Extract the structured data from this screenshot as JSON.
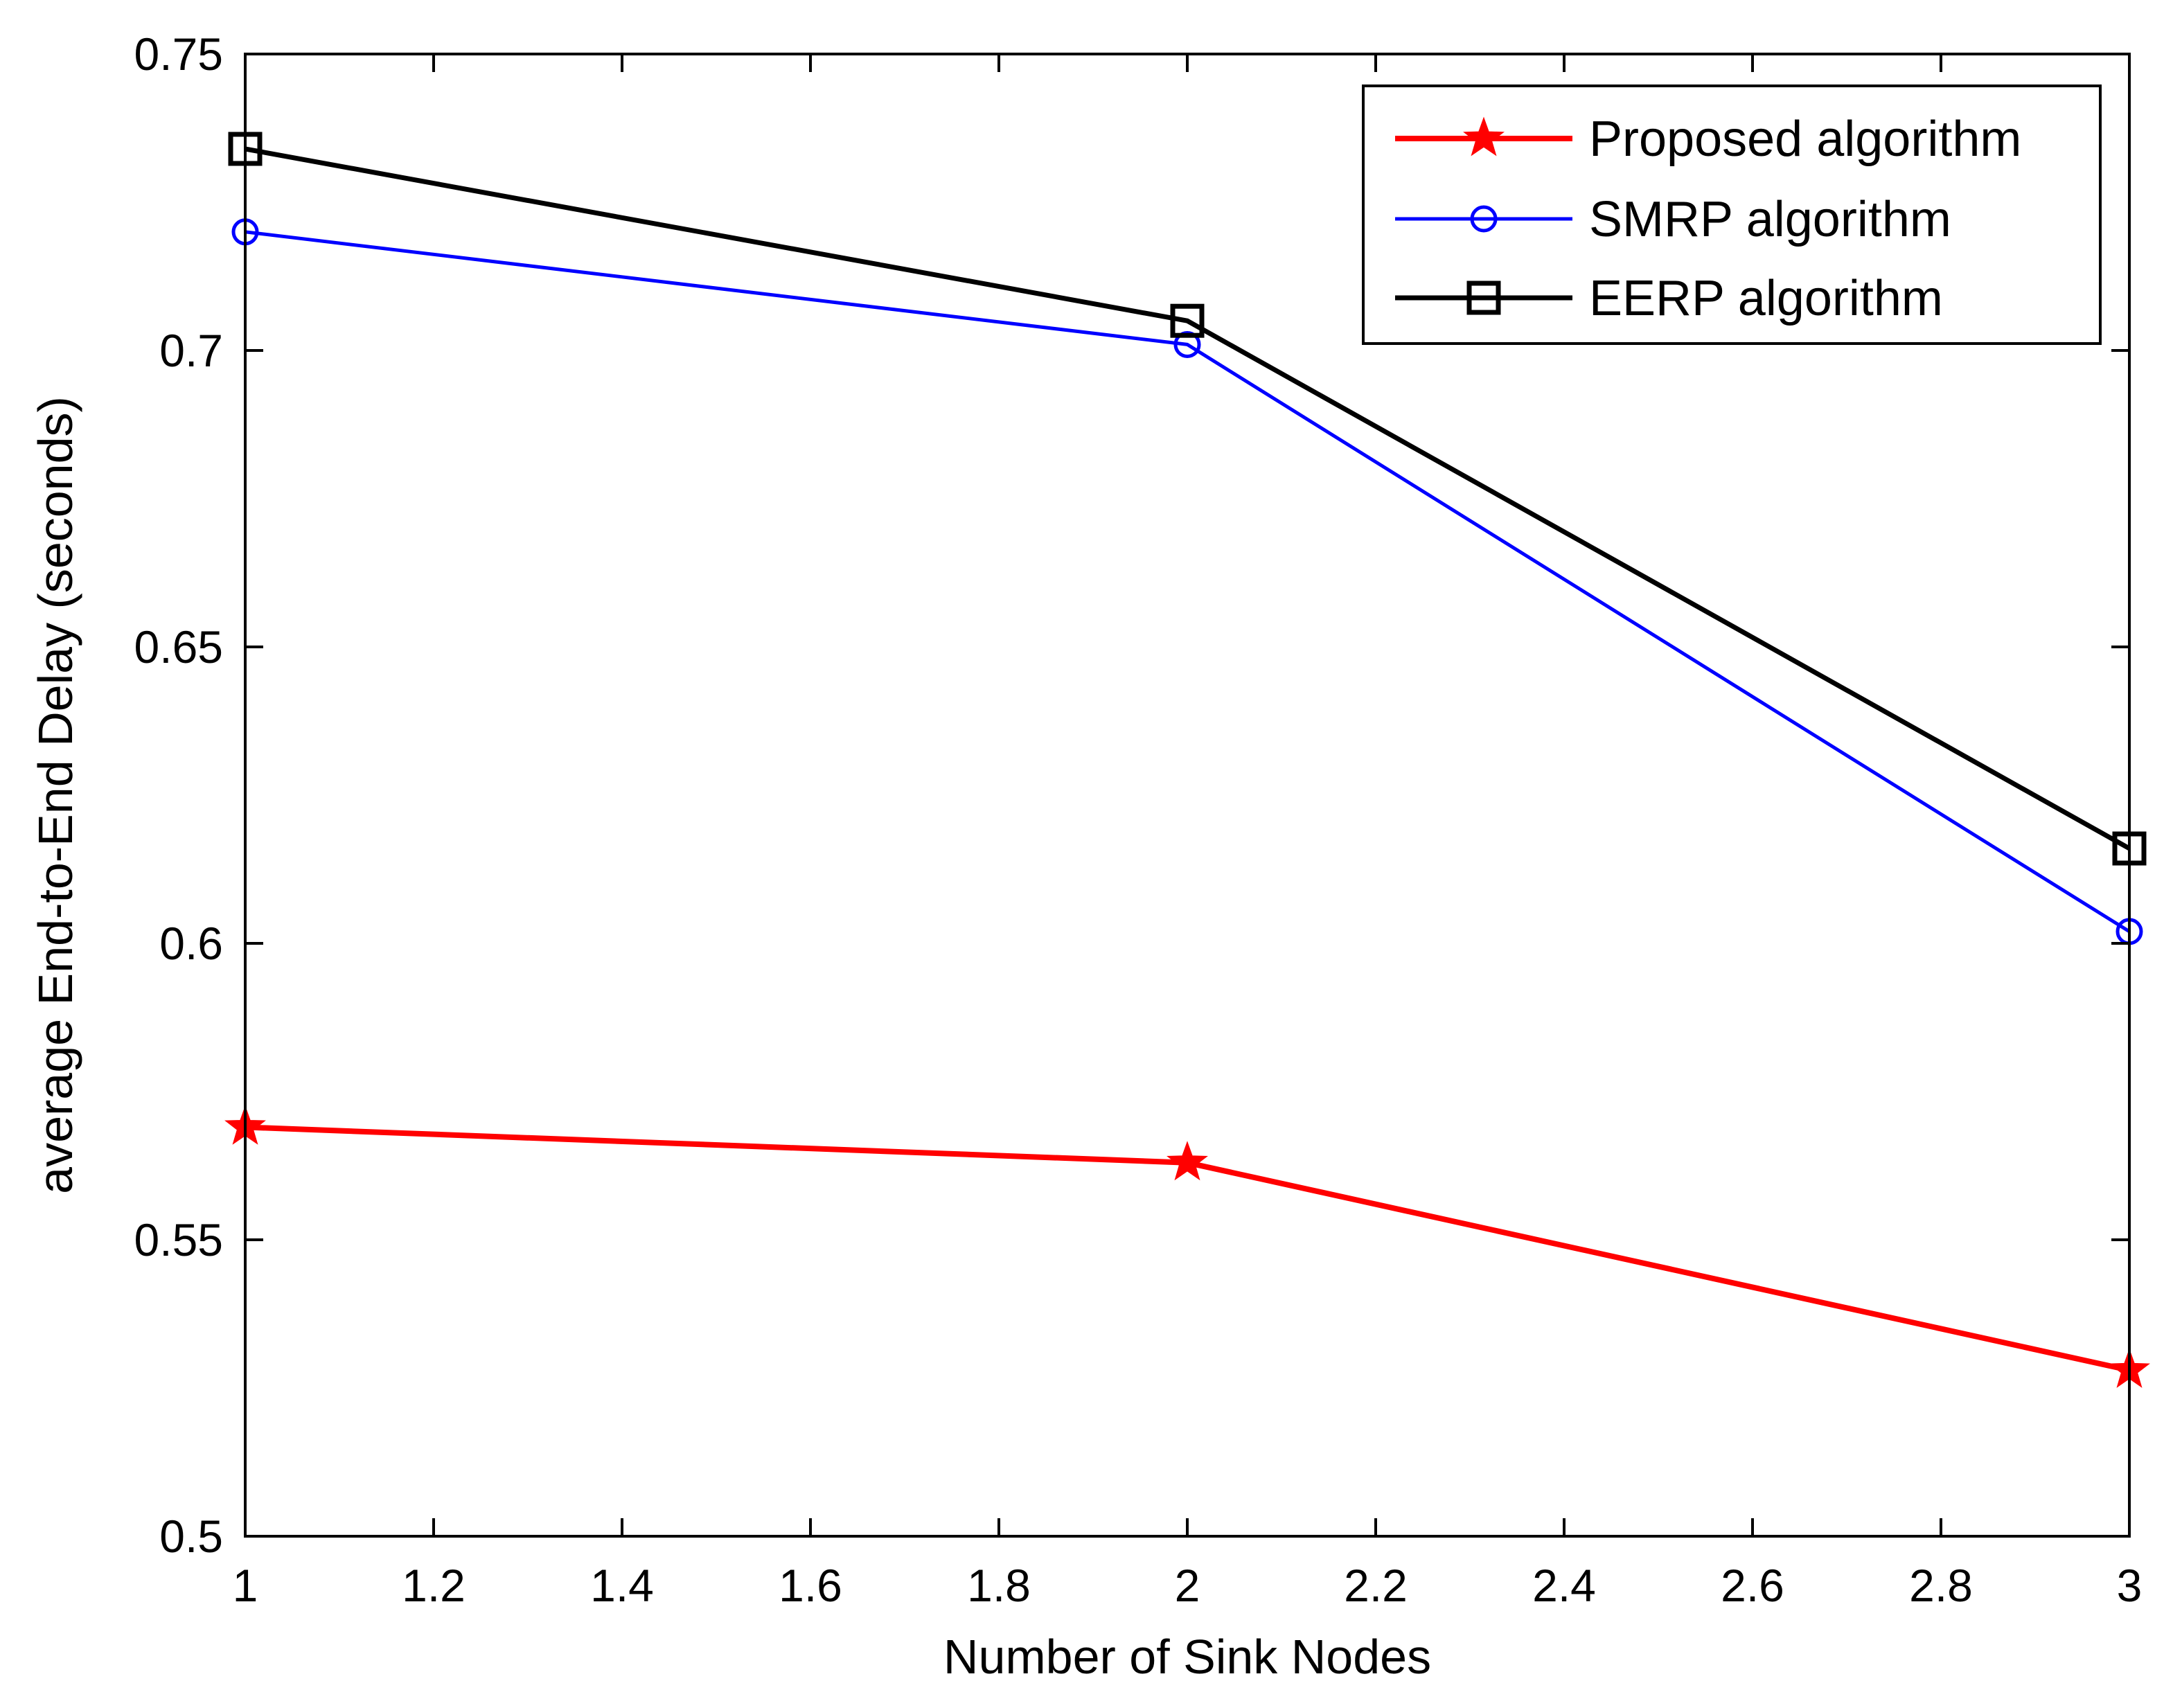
{
  "chart_data": {
    "type": "line",
    "title": "",
    "xlabel": "Number of Sink Nodes",
    "ylabel": "average End-to-End Delay (seconds)",
    "xlim": [
      1,
      3
    ],
    "ylim": [
      0.5,
      0.75
    ],
    "xticks": [
      1,
      1.2,
      1.4,
      1.6,
      1.8,
      2,
      2.2,
      2.4,
      2.6,
      2.8,
      3
    ],
    "xtick_labels": [
      "1",
      "1.2",
      "1.4",
      "1.6",
      "1.8",
      "2",
      "2.2",
      "2.4",
      "2.6",
      "2.8",
      "3"
    ],
    "yticks": [
      0.5,
      0.55,
      0.6,
      0.65,
      0.7,
      0.75
    ],
    "ytick_labels": [
      "0.5",
      "0.55",
      "0.6",
      "0.65",
      "0.7",
      "0.75"
    ],
    "grid": false,
    "legend_position": "top-right",
    "x": [
      1,
      2,
      3
    ],
    "series": [
      {
        "name": "Proposed algorithm",
        "values": [
          0.569,
          0.563,
          0.528
        ],
        "color": "#ff0000",
        "marker": "star"
      },
      {
        "name": "SMRP algorithm",
        "values": [
          0.72,
          0.701,
          0.602
        ],
        "color": "#0000ff",
        "marker": "circle"
      },
      {
        "name": "EERP algorithm",
        "values": [
          0.734,
          0.705,
          0.616
        ],
        "color": "#000000",
        "marker": "square"
      }
    ]
  }
}
